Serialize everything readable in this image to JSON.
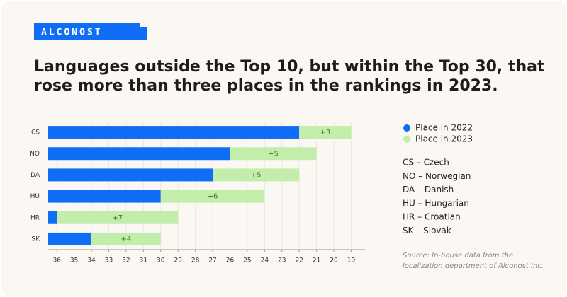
{
  "logo": "ALCONOST",
  "chart_data": {
    "type": "range-bar",
    "title": [
      "Languages outside the Top 10, but within the Top 30, that",
      "rose more than three places in the rankings in 2023."
    ],
    "categories": [
      "CS",
      "NO",
      "DA",
      "HU",
      "HR",
      "SK"
    ],
    "series": [
      {
        "name": "Place in 2022",
        "color": "#0f6ef5",
        "values": [
          22,
          26,
          27,
          30,
          36,
          34
        ]
      },
      {
        "name": "Place in 2023",
        "color": "#c3edab",
        "values": [
          19,
          21,
          22,
          24,
          29,
          30
        ]
      }
    ],
    "changes": {
      "values": [
        3,
        5,
        5,
        6,
        7,
        4
      ],
      "value_labels": [
        "+3",
        "+5",
        "+5",
        "+6",
        "+7",
        "+4"
      ]
    },
    "xlim": [
      36.5,
      18.2
    ],
    "xticks": [
      36,
      35,
      34,
      33,
      32,
      31,
      30,
      29,
      28,
      27,
      26,
      25,
      24,
      23,
      22,
      21,
      20,
      19
    ],
    "grid": true,
    "key": [
      "CS – Czech",
      "NO – Norwegian",
      "DA – Danish",
      "HU – Hungarian",
      "HR – Croatian",
      "SK – Slovak"
    ],
    "source": [
      "Source: In-house data from the",
      "localization department of Alconost Inc."
    ]
  }
}
